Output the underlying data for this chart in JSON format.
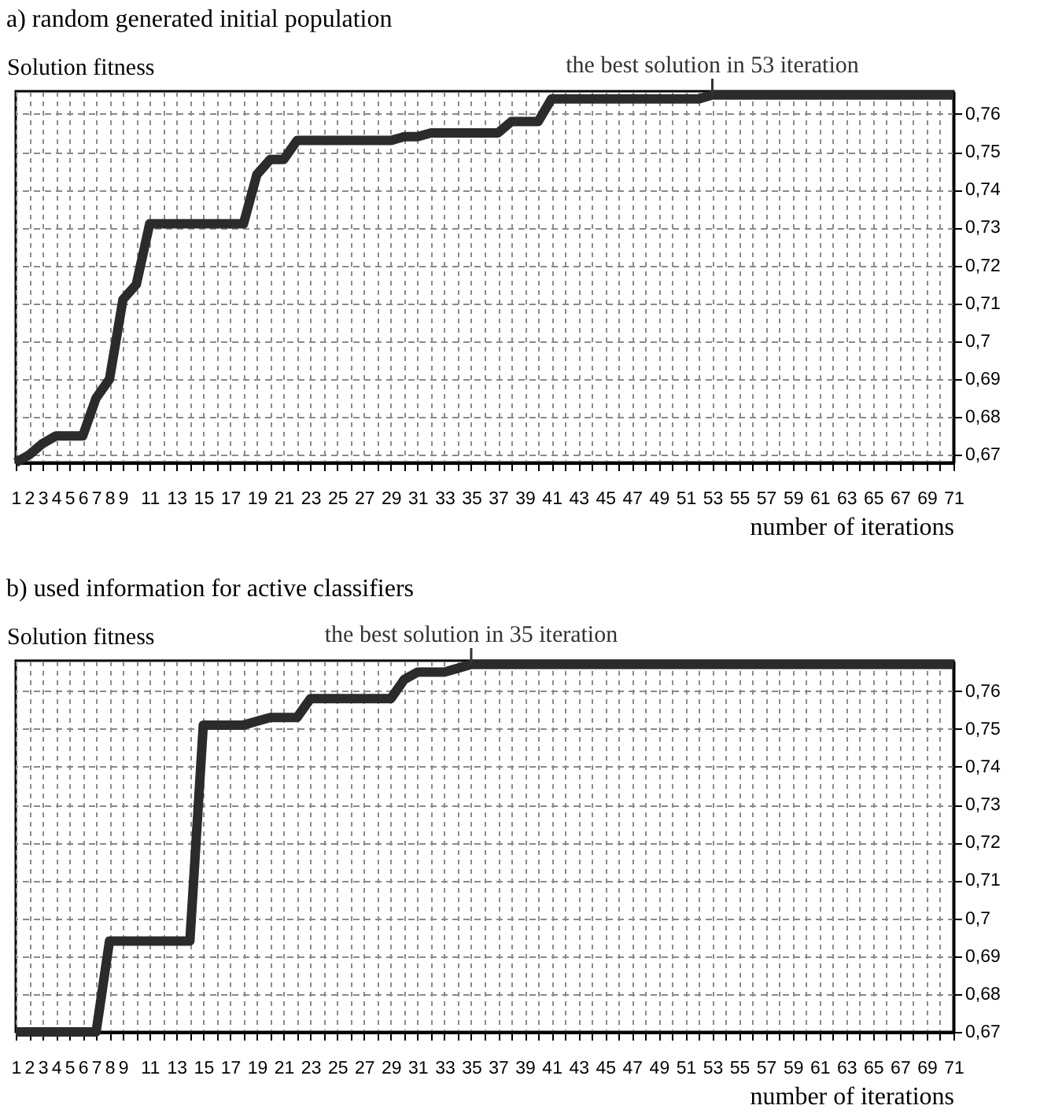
{
  "chart_data": [
    {
      "type": "line",
      "title": "a) random generated initial population",
      "xlabel": "number of iterations",
      "ylabel": "Solution fitness",
      "categories": [
        "1",
        "2",
        "3",
        "4",
        "5",
        "6",
        "7",
        "8",
        "9",
        null,
        "11",
        null,
        "13",
        null,
        "15",
        null,
        "17",
        null,
        "19",
        null,
        "21",
        null,
        "23",
        null,
        "25",
        null,
        "27",
        null,
        "29",
        null,
        "31",
        null,
        "33",
        null,
        "35",
        null,
        "37",
        null,
        "39",
        null,
        "41",
        null,
        "43",
        null,
        "45",
        null,
        "47",
        null,
        "49",
        null,
        "51",
        null,
        "53",
        null,
        "55",
        null,
        "57",
        null,
        "59",
        null,
        "61",
        null,
        "63",
        null,
        "65",
        null,
        "67",
        null,
        "69",
        null,
        "71"
      ],
      "values": [
        0.668,
        0.67,
        0.673,
        0.675,
        0.675,
        0.675,
        0.685,
        0.69,
        0.711,
        0.715,
        0.731,
        0.731,
        0.731,
        0.731,
        0.731,
        0.731,
        0.731,
        0.731,
        0.744,
        0.748,
        0.748,
        0.753,
        0.753,
        0.753,
        0.753,
        0.753,
        0.753,
        0.753,
        0.753,
        0.754,
        0.754,
        0.755,
        0.755,
        0.755,
        0.755,
        0.755,
        0.755,
        0.758,
        0.758,
        0.758,
        0.764,
        0.764,
        0.764,
        0.764,
        0.764,
        0.764,
        0.764,
        0.764,
        0.764,
        0.764,
        0.764,
        0.764,
        0.765,
        0.765,
        0.765,
        0.765,
        0.765,
        0.765,
        0.765,
        0.765,
        0.765,
        0.765,
        0.765,
        0.765,
        0.765,
        0.765,
        0.765,
        0.765,
        0.765,
        0.765,
        0.765
      ],
      "color": "#2b2b2b",
      "ylim": [
        0.668,
        0.766
      ],
      "yticks": [
        {
          "value": 0.67,
          "label": "0,67"
        },
        {
          "value": 0.68,
          "label": "0,68"
        },
        {
          "value": 0.69,
          "label": "0,69"
        },
        {
          "value": 0.7,
          "label": "0,7"
        },
        {
          "value": 0.71,
          "label": "0,71"
        },
        {
          "value": 0.72,
          "label": "0,72"
        },
        {
          "value": 0.73,
          "label": "0,73"
        },
        {
          "value": 0.74,
          "label": "0,74"
        },
        {
          "value": 0.75,
          "label": "0,75"
        },
        {
          "value": 0.76,
          "label": "0,76"
        }
      ],
      "grid": true,
      "annotations": [
        {
          "text": "the best solution in 53 iteration",
          "x": "53",
          "y": 0.765
        }
      ]
    },
    {
      "type": "line",
      "title": "b) used information for active classifiers",
      "xlabel": "number of iterations",
      "ylabel": "Solution fitness",
      "categories": [
        "1",
        "2",
        "3",
        "4",
        "5",
        "6",
        "7",
        "8",
        "9",
        null,
        "11",
        null,
        "13",
        null,
        "15",
        null,
        "17",
        null,
        "19",
        null,
        "21",
        null,
        "23",
        null,
        "25",
        null,
        "27",
        null,
        "29",
        null,
        "31",
        null,
        "33",
        null,
        "35",
        null,
        "37",
        null,
        "39",
        null,
        "41",
        null,
        "43",
        null,
        "45",
        null,
        "47",
        null,
        "49",
        null,
        "51",
        null,
        "53",
        null,
        "55",
        null,
        "57",
        null,
        "59",
        null,
        "61",
        null,
        "63",
        null,
        "65",
        null,
        "67",
        null,
        "69",
        null,
        "71"
      ],
      "values": [
        0.67,
        0.67,
        0.67,
        0.67,
        0.67,
        0.67,
        0.67,
        0.694,
        0.694,
        0.694,
        0.694,
        0.694,
        0.694,
        0.694,
        0.751,
        0.751,
        0.751,
        0.751,
        0.752,
        0.753,
        0.753,
        0.753,
        0.758,
        0.758,
        0.758,
        0.758,
        0.758,
        0.758,
        0.758,
        0.763,
        0.765,
        0.765,
        0.765,
        0.766,
        0.767,
        0.767,
        0.767,
        0.767,
        0.767,
        0.767,
        0.767,
        0.767,
        0.767,
        0.767,
        0.767,
        0.767,
        0.767,
        0.767,
        0.767,
        0.767,
        0.767,
        0.767,
        0.767,
        0.767,
        0.767,
        0.767,
        0.767,
        0.767,
        0.767,
        0.767,
        0.767,
        0.767,
        0.767,
        0.767,
        0.767,
        0.767,
        0.767,
        0.767,
        0.767,
        0.767,
        0.767
      ],
      "color": "#2b2b2b",
      "ylim": [
        0.67,
        0.768
      ],
      "yticks": [
        {
          "value": 0.67,
          "label": "0,67"
        },
        {
          "value": 0.68,
          "label": "0,68"
        },
        {
          "value": 0.69,
          "label": "0,69"
        },
        {
          "value": 0.7,
          "label": "0,7"
        },
        {
          "value": 0.71,
          "label": "0,71"
        },
        {
          "value": 0.72,
          "label": "0,72"
        },
        {
          "value": 0.73,
          "label": "0,73"
        },
        {
          "value": 0.74,
          "label": "0,74"
        },
        {
          "value": 0.75,
          "label": "0,75"
        },
        {
          "value": 0.76,
          "label": "0,76"
        }
      ],
      "grid": true,
      "annotations": [
        {
          "text": "the best solution in 35 iteration",
          "x": "35",
          "y": 0.767
        }
      ]
    }
  ]
}
